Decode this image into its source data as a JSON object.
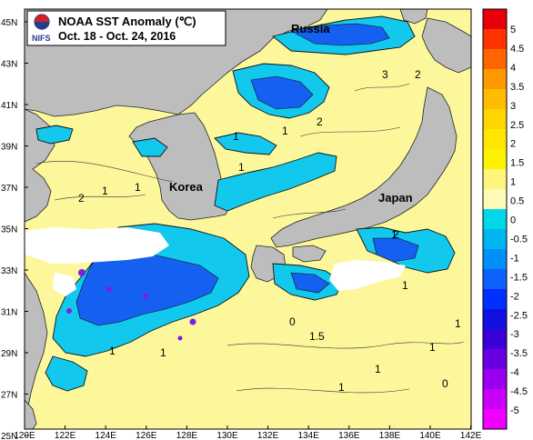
{
  "title": {
    "agency": "NIFS",
    "heading": "NOAA SST Anomaly (℃)",
    "period": "Oct. 18 - Oct. 24, 2016"
  },
  "place_labels": {
    "russia": "Russia",
    "korea": "Korea",
    "japan": "Japan"
  },
  "axes": {
    "lat_ticks": [
      "45N",
      "43N",
      "41N",
      "39N",
      "37N",
      "35N",
      "33N",
      "31N",
      "29N",
      "27N",
      "25N"
    ],
    "lon_ticks": [
      "120E",
      "122E",
      "124E",
      "126E",
      "128E",
      "130E",
      "132E",
      "134E",
      "136E",
      "138E",
      "140E",
      "142E"
    ]
  },
  "colorbar": {
    "levels": [
      "5",
      "4.5",
      "4",
      "3.5",
      "3",
      "2.5",
      "2",
      "1.5",
      "1",
      "0.5",
      "0",
      "-0.5",
      "-1",
      "-1.5",
      "-2",
      "-2.5",
      "-3",
      "-3.5",
      "-4",
      "-4.5",
      "-5"
    ],
    "colors": [
      "#e8000b",
      "#ff3300",
      "#ff6600",
      "#ff9900",
      "#ffbb00",
      "#ffd500",
      "#ffe600",
      "#fff200",
      "#fff57a",
      "#fdfbb6",
      "#00d8e8",
      "#00b4f0",
      "#0090f8",
      "#1060ff",
      "#0030ff",
      "#1010e0",
      "#3a00d8",
      "#6a00e0",
      "#9a00f0",
      "#c800f8",
      "#f000ff"
    ]
  },
  "contour_labels": [
    "3",
    "2",
    "1",
    "2",
    "2",
    "1",
    "1",
    "1",
    "1",
    "1",
    "1.5",
    "1",
    "1",
    "2",
    "1",
    "1",
    "0",
    "0",
    "1",
    "1",
    "1"
  ],
  "colors": {
    "land": "#bdbdbd",
    "ocean_warm": "#fbf79a",
    "anomaly_neutral": "#fdfbb6",
    "anomaly_cool": "#12c8ec",
    "anomaly_cold": "#1560f0"
  }
}
